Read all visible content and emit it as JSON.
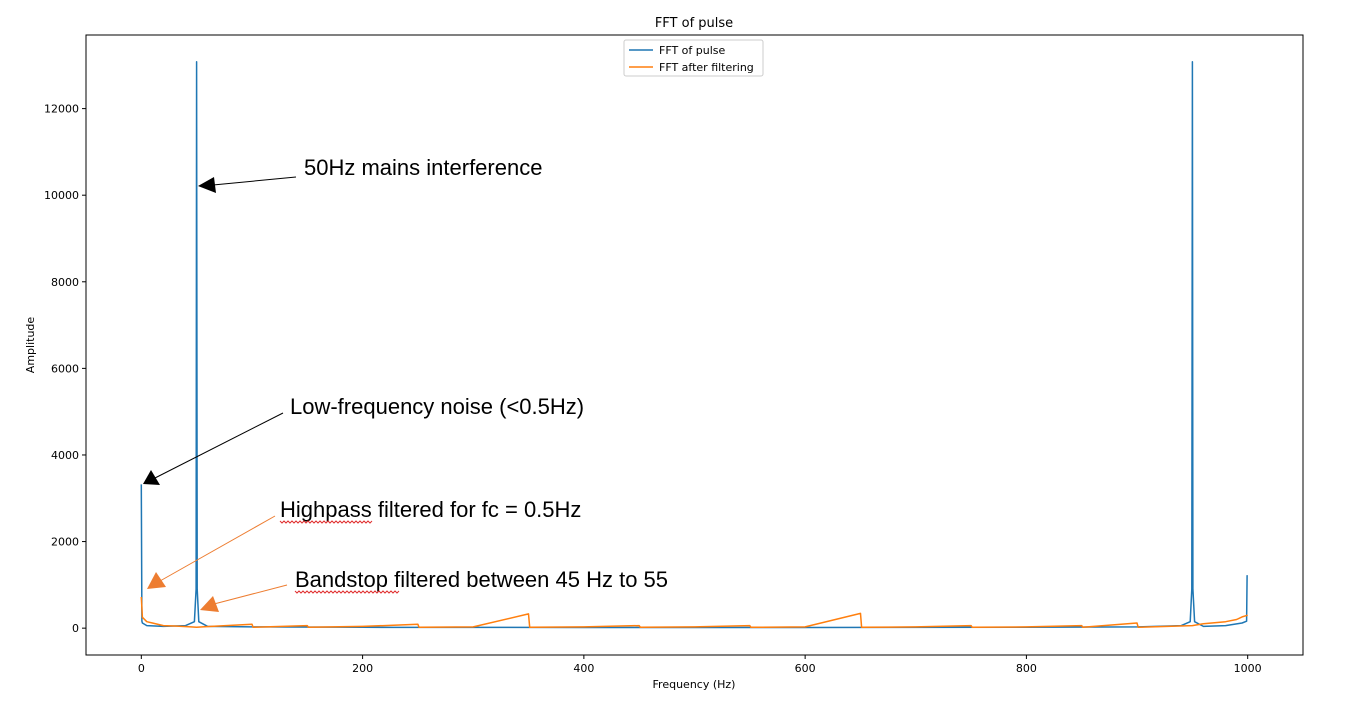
{
  "chart_data": {
    "type": "line",
    "title": "FFT of pulse",
    "xlabel": "Frequency (Hz)",
    "ylabel": "Amplitude",
    "xlim": [
      -50,
      1050
    ],
    "ylim": [
      -620,
      13700
    ],
    "xticks": [
      0,
      200,
      400,
      600,
      800,
      1000
    ],
    "yticks": [
      0,
      2000,
      4000,
      6000,
      8000,
      10000,
      12000
    ],
    "grid": false,
    "legend_position": "upper center",
    "series": [
      {
        "name": "FFT of pulse",
        "color": "#1f77b4",
        "points": [
          [
            0,
            3320
          ],
          [
            0.5,
            160
          ],
          [
            1,
            120
          ],
          [
            5,
            60
          ],
          [
            20,
            40
          ],
          [
            40,
            60
          ],
          [
            48,
            150
          ],
          [
            49.5,
            900
          ],
          [
            50,
            13080
          ],
          [
            50.5,
            900
          ],
          [
            52,
            150
          ],
          [
            60,
            40
          ],
          [
            100,
            30
          ],
          [
            200,
            20
          ],
          [
            400,
            15
          ],
          [
            600,
            15
          ],
          [
            800,
            20
          ],
          [
            900,
            30
          ],
          [
            940,
            60
          ],
          [
            948,
            150
          ],
          [
            949.5,
            900
          ],
          [
            950,
            13080
          ],
          [
            950.5,
            900
          ],
          [
            952,
            150
          ],
          [
            960,
            40
          ],
          [
            980,
            60
          ],
          [
            995,
            120
          ],
          [
            999,
            160
          ],
          [
            999.5,
            1210
          ],
          [
            1000,
            1210
          ]
        ]
      },
      {
        "name": "FFT after filtering",
        "color": "#ff7f0e",
        "points": [
          [
            0,
            720
          ],
          [
            1,
            250
          ],
          [
            5,
            150
          ],
          [
            10,
            120
          ],
          [
            20,
            60
          ],
          [
            30,
            50
          ],
          [
            45,
            30
          ],
          [
            50,
            20
          ],
          [
            55,
            30
          ],
          [
            100,
            90
          ],
          [
            101,
            20
          ],
          [
            150,
            60
          ],
          [
            151,
            20
          ],
          [
            200,
            40
          ],
          [
            250,
            90
          ],
          [
            251,
            20
          ],
          [
            300,
            30
          ],
          [
            350,
            330
          ],
          [
            351,
            20
          ],
          [
            400,
            30
          ],
          [
            450,
            60
          ],
          [
            451,
            20
          ],
          [
            500,
            30
          ],
          [
            550,
            60
          ],
          [
            551,
            20
          ],
          [
            600,
            30
          ],
          [
            650,
            340
          ],
          [
            651,
            20
          ],
          [
            700,
            30
          ],
          [
            750,
            60
          ],
          [
            751,
            20
          ],
          [
            800,
            30
          ],
          [
            850,
            60
          ],
          [
            851,
            20
          ],
          [
            900,
            120
          ],
          [
            901,
            20
          ],
          [
            950,
            60
          ],
          [
            960,
            100
          ],
          [
            980,
            150
          ],
          [
            990,
            200
          ],
          [
            995,
            260
          ],
          [
            1000,
            300
          ]
        ]
      }
    ],
    "annotations": [
      {
        "text": "50Hz mains interference",
        "arrow_to": [
          50,
          10200
        ],
        "arrow_color": "#000000"
      },
      {
        "text": "Low-frequency noise (<0.5Hz)",
        "arrow_to": [
          0,
          3300
        ],
        "arrow_color": "#000000"
      },
      {
        "text_parts": [
          "Highpass",
          " filtered for fc = 0.5Hz"
        ],
        "arrow_to": [
          5,
          900
        ],
        "arrow_color": "#ed7d31"
      },
      {
        "text_parts": [
          "Bandstop",
          " filtered between 45 Hz to 55"
        ],
        "arrow_to": [
          55,
          400
        ],
        "arrow_color": "#ed7d31"
      }
    ]
  }
}
